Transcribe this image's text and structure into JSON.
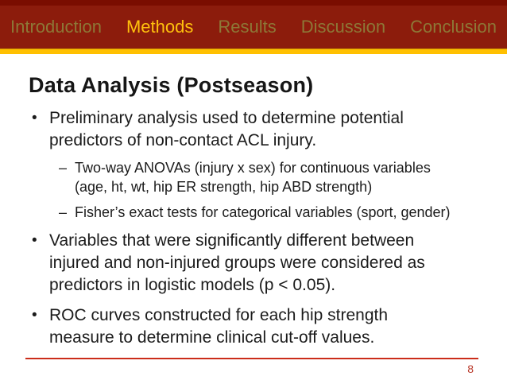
{
  "nav": {
    "items": [
      {
        "label": "Introduction",
        "active": false
      },
      {
        "label": "Methods",
        "active": true
      },
      {
        "label": "Results",
        "active": false
      },
      {
        "label": "Discussion",
        "active": false
      },
      {
        "label": "Conclusion",
        "active": false
      }
    ]
  },
  "content": {
    "title": "Data Analysis (Postseason)",
    "bullet_char": "•",
    "sub_bullet_char": "–",
    "bullets": [
      {
        "text": "Preliminary analysis used to determine potential\npredictors of non-contact ACL injury.",
        "sub": [
          "Two-way ANOVAs (injury x sex) for continuous variables\n(age, ht, wt, hip ER strength, hip ABD strength)",
          "Fisher’s exact tests for categorical variables (sport, gender)"
        ]
      },
      {
        "text": "Variables that were significantly different between\ninjured and non-injured groups were considered as\npredictors in logistic models (p < 0.05)."
      },
      {
        "text": "ROC curves constructed for each hip strength\nmeasure to determine clinical cut-off values."
      }
    ],
    "page_number": "8"
  },
  "colors": {
    "header_background": "#8c1c0c",
    "header_top_strip": "#7a0d00",
    "nav_inactive": "#8d7837",
    "nav_active": "#ffc10d",
    "accent_gold_bar": "#ffc000",
    "body_text": "#1b1b1b",
    "footer_line": "#cb2d1a",
    "page_number": "#b93a2b"
  }
}
